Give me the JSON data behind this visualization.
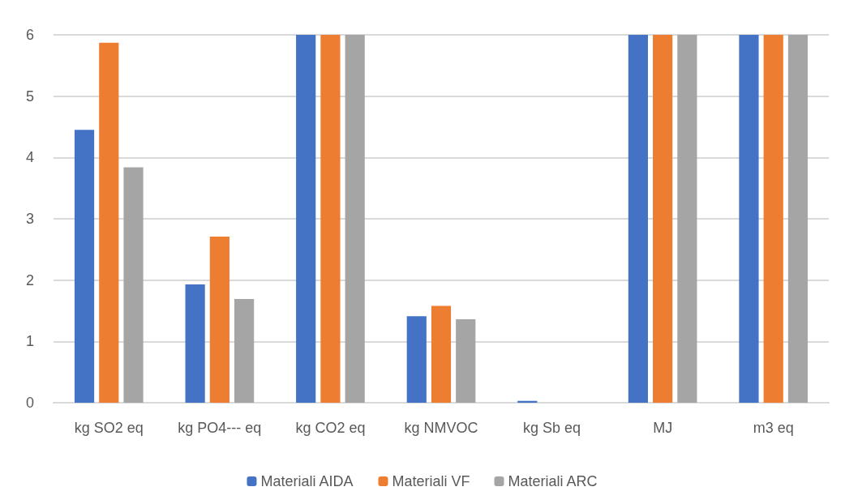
{
  "chart_data": {
    "type": "bar",
    "categories": [
      "kg SO2 eq",
      "kg PO4--- eq",
      "kg CO2 eq",
      "kg NMVOC",
      "kg Sb eq",
      "MJ",
      "m3 eq"
    ],
    "series": [
      {
        "name": "Materiali AIDA",
        "color": "#4472c4",
        "values": [
          4.45,
          1.93,
          6,
          1.41,
          0.03,
          6,
          6
        ]
      },
      {
        "name": "Materiali VF",
        "color": "#ed7d31",
        "values": [
          5.87,
          2.71,
          6,
          1.58,
          0,
          6,
          6
        ]
      },
      {
        "name": "Materiali ARC",
        "color": "#a5a5a5",
        "values": [
          3.84,
          1.69,
          6,
          1.36,
          0,
          6,
          6
        ]
      }
    ],
    "ylim": [
      0,
      6
    ],
    "yticks": [
      0,
      1,
      2,
      3,
      4,
      5,
      6
    ],
    "grid": "y",
    "legend": "bottom"
  }
}
